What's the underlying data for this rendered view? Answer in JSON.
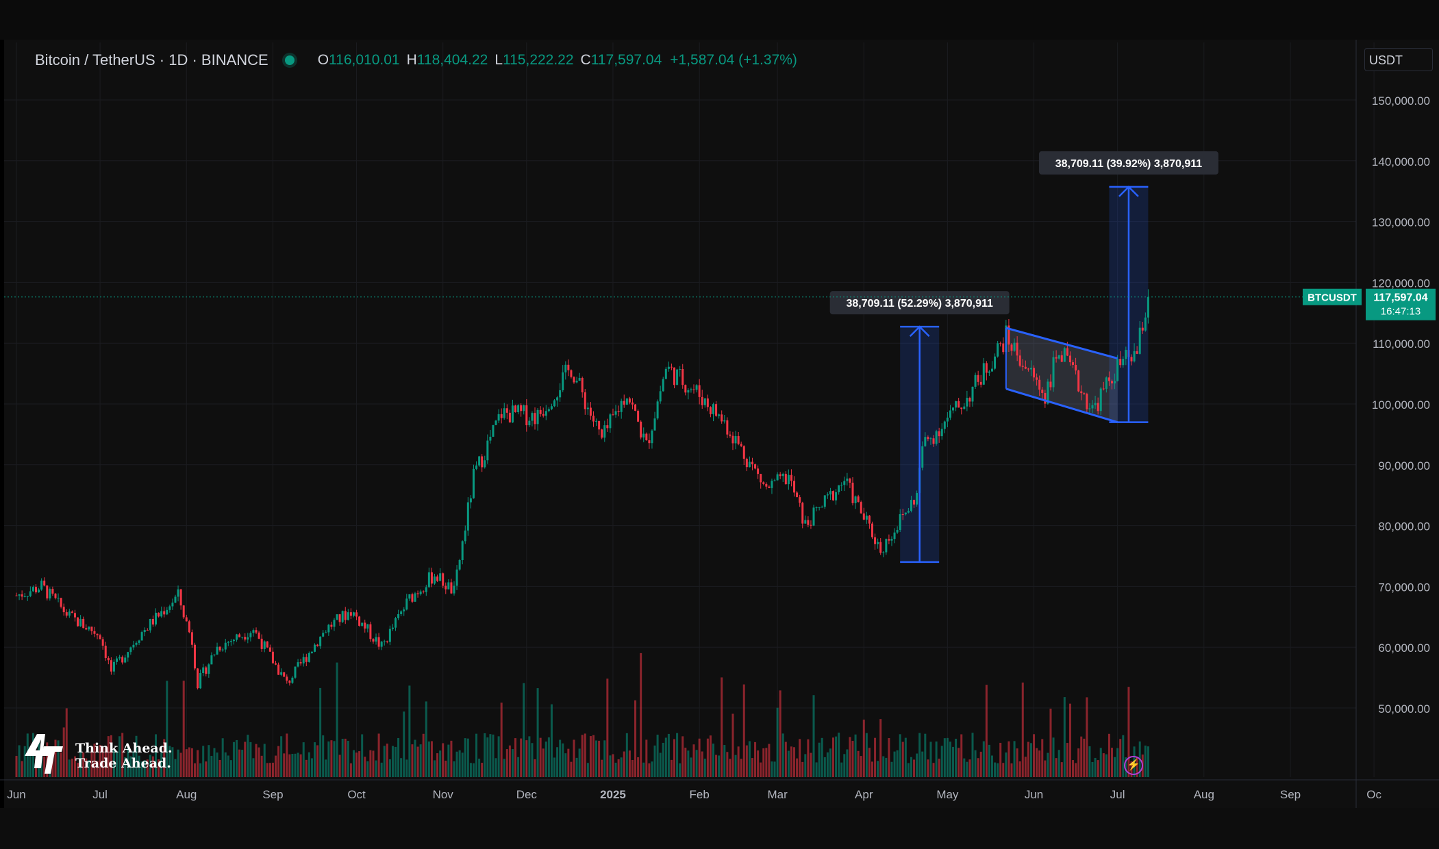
{
  "header": {
    "symbol_title": "Bitcoin / TetherUS · 1D · BINANCE",
    "open_label": "O",
    "open_value": "116,010.01",
    "high_label": "H",
    "high_value": "118,404.22",
    "low_label": "L",
    "low_value": "115,222.22",
    "close_label": "C",
    "close_value": "117,597.04",
    "change": "+1,587.04 (+1.37%)"
  },
  "currency_button": "USDT",
  "price_tag": {
    "symbol": "BTCUSDT",
    "price": "117,597.04",
    "countdown": "16:47:13"
  },
  "watermark": {
    "line1": "Think Ahead.",
    "line2": "Trade Ahead."
  },
  "colors": {
    "up": "#089981",
    "down": "#f23645",
    "accent": "#2962ff",
    "background": "#0f0f0f"
  },
  "icons": [
    "status-dot-icon",
    "brand-logo-icon",
    "lightning-icon"
  ],
  "chart_data": {
    "type": "candlestick",
    "x_ticks": [
      "Jun",
      "Jul",
      "Aug",
      "Sep",
      "Oct",
      "Nov",
      "Dec",
      "2025",
      "Feb",
      "Mar",
      "Apr",
      "May",
      "Jun",
      "Jul",
      "Aug",
      "Sep",
      "Oc"
    ],
    "y_ticks": [
      "150,000.00",
      "140,000.00",
      "130,000.00",
      "120,000.00",
      "110,000.00",
      "100,000.00",
      "90,000.00",
      "80,000.00",
      "70,000.00",
      "60,000.00",
      "50,000.00"
    ],
    "ylim": [
      38000,
      155000
    ],
    "grid": true,
    "current_price": 117597.04,
    "close_path": [
      [
        "2024-06-01",
        68500
      ],
      [
        "2024-06-10",
        70000
      ],
      [
        "2024-06-20",
        65000
      ],
      [
        "2024-07-01",
        62000
      ],
      [
        "2024-07-05",
        56000
      ],
      [
        "2024-07-15",
        62000
      ],
      [
        "2024-07-29",
        68500
      ],
      [
        "2024-08-03",
        61000
      ],
      [
        "2024-08-05",
        54000
      ],
      [
        "2024-08-12",
        60000
      ],
      [
        "2024-08-25",
        63000
      ],
      [
        "2024-09-06",
        54000
      ],
      [
        "2024-09-20",
        63000
      ],
      [
        "2024-09-29",
        66000
      ],
      [
        "2024-10-10",
        60000
      ],
      [
        "2024-10-20",
        68000
      ],
      [
        "2024-10-29",
        72000
      ],
      [
        "2024-11-05",
        69000
      ],
      [
        "2024-11-12",
        88000
      ],
      [
        "2024-11-22",
        98500
      ],
      [
        "2024-12-05",
        98000
      ],
      [
        "2024-12-17",
        106000
      ],
      [
        "2024-12-28",
        94000
      ],
      [
        "2025-01-06",
        102000
      ],
      [
        "2025-01-13",
        93000
      ],
      [
        "2025-01-20",
        106000
      ],
      [
        "2025-01-31",
        102000
      ],
      [
        "2025-02-10",
        97000
      ],
      [
        "2025-02-25",
        86000
      ],
      [
        "2025-03-05",
        88000
      ],
      [
        "2025-03-11",
        80000
      ],
      [
        "2025-03-25",
        87500
      ],
      [
        "2025-04-07",
        76000
      ],
      [
        "2025-04-20",
        85000
      ],
      [
        "2025-04-22",
        93000
      ],
      [
        "2025-05-08",
        101000
      ],
      [
        "2025-05-22",
        111000
      ],
      [
        "2025-06-05",
        101500
      ],
      [
        "2025-06-10",
        109000
      ],
      [
        "2025-06-22",
        99000
      ],
      [
        "2025-07-01",
        106000
      ],
      [
        "2025-07-08",
        108500
      ],
      [
        "2025-07-12",
        117597
      ]
    ],
    "annotations": [
      {
        "label": "38,709.11 (52.29%) 3,870,911",
        "from_date": "2025-04-14",
        "to_date": "2025-04-28",
        "low": 74000,
        "high": 112709
      },
      {
        "label": "38,709.11 (39.92%) 3,870,911",
        "from_date": "2025-06-28",
        "to_date": "2025-07-12",
        "low": 97000,
        "high": 135709
      }
    ],
    "channel": {
      "start_date": "2025-05-22",
      "end_date": "2025-07-01",
      "upper": [
        112500,
        107500
      ],
      "lower": [
        102500,
        97000
      ]
    }
  }
}
